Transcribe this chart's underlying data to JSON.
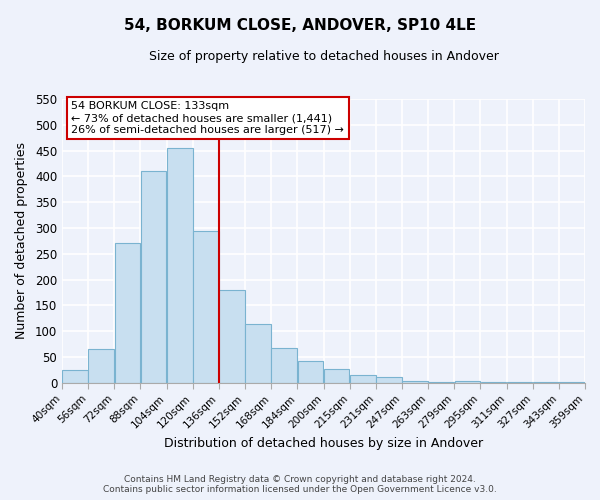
{
  "title": "54, BORKUM CLOSE, ANDOVER, SP10 4LE",
  "subtitle": "Size of property relative to detached houses in Andover",
  "xlabel": "Distribution of detached houses by size in Andover",
  "ylabel": "Number of detached properties",
  "bar_color": "#c8dff0",
  "bar_edge_color": "#7ab3d0",
  "bin_labels": [
    "40sqm",
    "56sqm",
    "72sqm",
    "88sqm",
    "104sqm",
    "120sqm",
    "136sqm",
    "152sqm",
    "168sqm",
    "184sqm",
    "200sqm",
    "215sqm",
    "231sqm",
    "247sqm",
    "263sqm",
    "279sqm",
    "295sqm",
    "311sqm",
    "327sqm",
    "343sqm",
    "359sqm"
  ],
  "bar_heights": [
    25,
    65,
    270,
    410,
    455,
    295,
    180,
    113,
    67,
    43,
    27,
    16,
    11,
    4,
    1,
    3,
    1,
    1,
    1,
    1
  ],
  "vline_position": 6,
  "vline_color": "#cc0000",
  "ylim": [
    0,
    550
  ],
  "yticks": [
    0,
    50,
    100,
    150,
    200,
    250,
    300,
    350,
    400,
    450,
    500,
    550
  ],
  "annotation_title": "54 BORKUM CLOSE: 133sqm",
  "annotation_line1": "← 73% of detached houses are smaller (1,441)",
  "annotation_line2": "26% of semi-detached houses are larger (517) →",
  "footer_line1": "Contains HM Land Registry data © Crown copyright and database right 2024.",
  "footer_line2": "Contains public sector information licensed under the Open Government Licence v3.0.",
  "background_color": "#eef2fb",
  "grid_color": "#ffffff",
  "spine_color": "#aaaaaa"
}
